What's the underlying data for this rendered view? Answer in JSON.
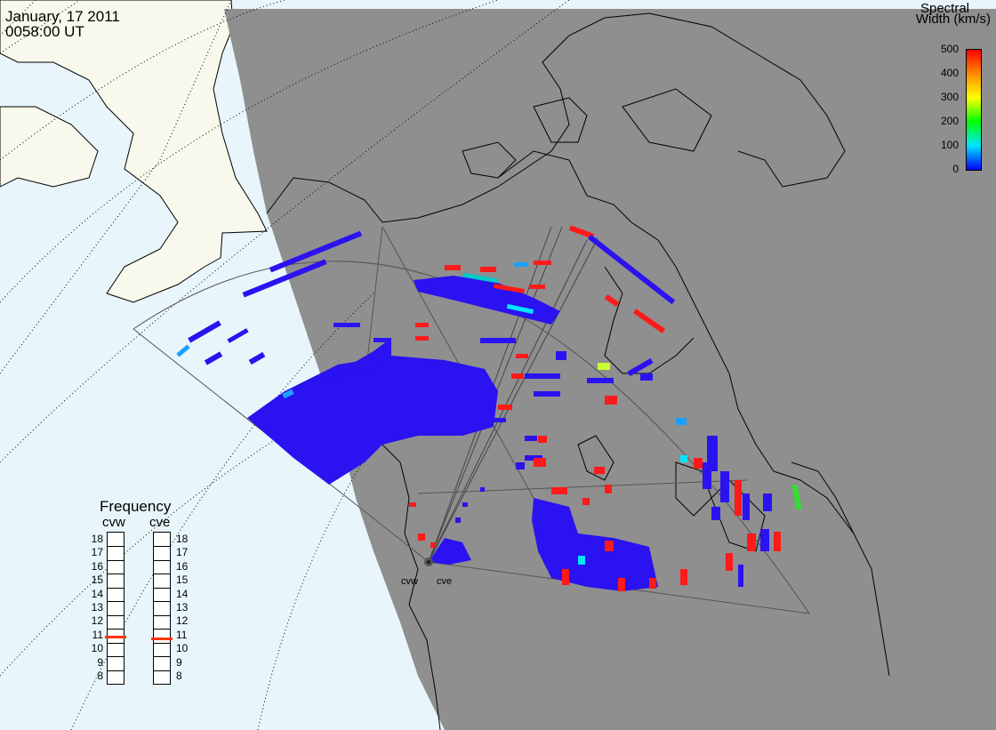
{
  "header": {
    "date": "January, 17 2011",
    "time": "0058:00 UT"
  },
  "colorbar": {
    "title_line1": "Spectral",
    "title_line2": "Width (km/s)",
    "ticks": [
      "500",
      "400",
      "300",
      "200",
      "100",
      "0"
    ],
    "gradient_colors": [
      "#ff0000",
      "#ff8c00",
      "#ffff00",
      "#00ff00",
      "#00e5ff",
      "#0000ff"
    ]
  },
  "frequency_panel": {
    "title": "Frequency",
    "radars": [
      {
        "name": "cvw",
        "value_mhz": 10.9
      },
      {
        "name": "cve",
        "value_mhz": 10.8
      }
    ],
    "ticks": [
      "18",
      "17",
      "16",
      "15",
      "14",
      "13",
      "12",
      "11",
      "10",
      "9",
      "8"
    ],
    "marker_color": "#ff3300"
  },
  "sites": [
    {
      "label": "cvw"
    },
    {
      "label": "cve"
    }
  ],
  "colors": {
    "night": "#8f8f8f",
    "ocean_day": "#e8f6fc",
    "land_day": "#f8f8ec",
    "echo_low": "#2b12f0",
    "echo_mid": "#00c8ff",
    "echo_high": "#ff1a1a",
    "echo_green": "#33dd33"
  }
}
